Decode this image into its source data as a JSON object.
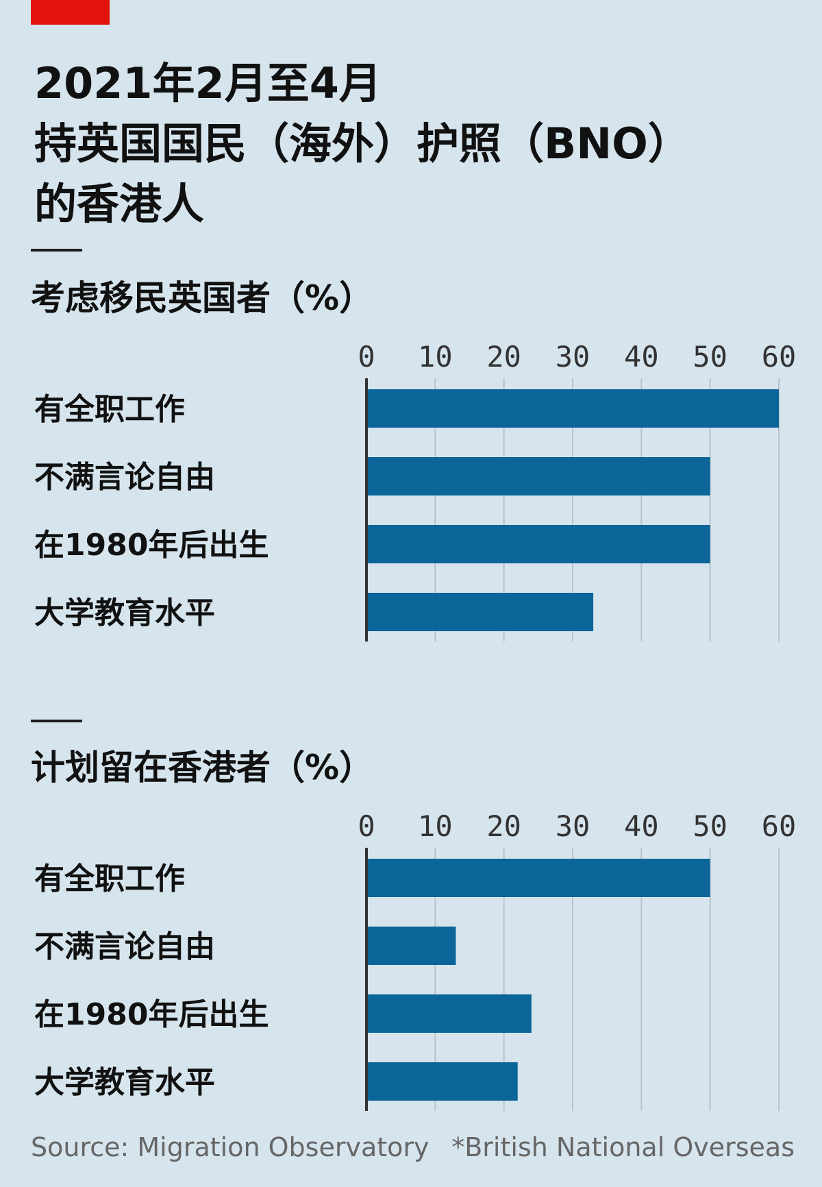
{
  "colors": {
    "bar": "#0c6599",
    "grid": "#b8c3cb",
    "axis": "#333333",
    "background": "#d6e4ed",
    "tag": "#e3120b"
  },
  "title_lines": [
    "2021年2月至4月",
    "持英国国民（海外）护照（BNO）",
    "的香港人"
  ],
  "chart_data": [
    {
      "type": "bar",
      "orientation": "horizontal",
      "title": "考虑移民英国者（%）",
      "categories": [
        "有全职工作",
        "不满言论自由",
        "在1980年后出生",
        "大学教育水平"
      ],
      "values": [
        60,
        50,
        50,
        33
      ],
      "xlim": [
        0,
        60
      ],
      "ticks": [
        "0",
        "10",
        "20",
        "30",
        "40",
        "50",
        "60"
      ],
      "grid": true
    },
    {
      "type": "bar",
      "orientation": "horizontal",
      "title": "计划留在香港者（%）",
      "categories": [
        "有全职工作",
        "不满言论自由",
        "在1980年后出生",
        "大学教育水平"
      ],
      "values": [
        50,
        13,
        24,
        22
      ],
      "xlim": [
        0,
        60
      ],
      "ticks": [
        "0",
        "10",
        "20",
        "30",
        "40",
        "50",
        "60"
      ],
      "grid": true
    }
  ],
  "footer": {
    "source": "Source: Migration Observatory",
    "note": "*British National Overseas"
  }
}
